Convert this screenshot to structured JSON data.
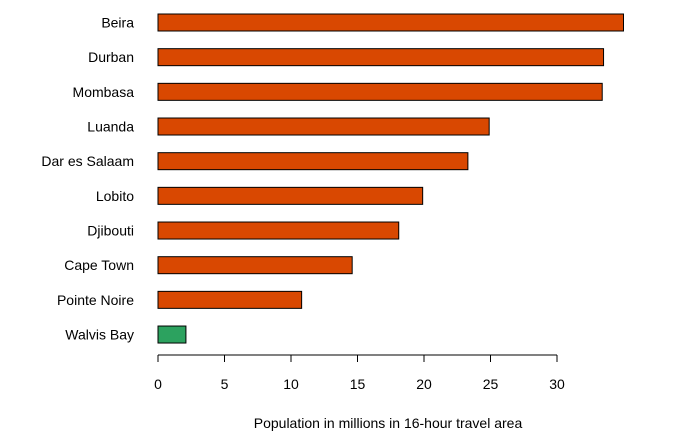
{
  "chart_data": {
    "type": "bar",
    "orientation": "horizontal",
    "categories": [
      "Beira",
      "Durban",
      "Mombasa",
      "Luanda",
      "Dar es Salaam",
      "Lobito",
      "Djibouti",
      "Cape Town",
      "Pointe Noire",
      "Walvis Bay"
    ],
    "values": [
      35.0,
      33.5,
      33.4,
      24.9,
      23.3,
      19.9,
      18.1,
      14.6,
      10.8,
      2.1
    ],
    "bar_colors": [
      "#d94801",
      "#d94801",
      "#d94801",
      "#d94801",
      "#d94801",
      "#d94801",
      "#d94801",
      "#d94801",
      "#d94801",
      "#2ca25f"
    ],
    "xlabel": "Population in millions in 16-hour travel area",
    "xlim": [
      0,
      35
    ],
    "xticks": [
      0,
      5,
      10,
      15,
      20,
      25,
      30
    ],
    "grid": false,
    "bar_outline_color": "#000000"
  }
}
